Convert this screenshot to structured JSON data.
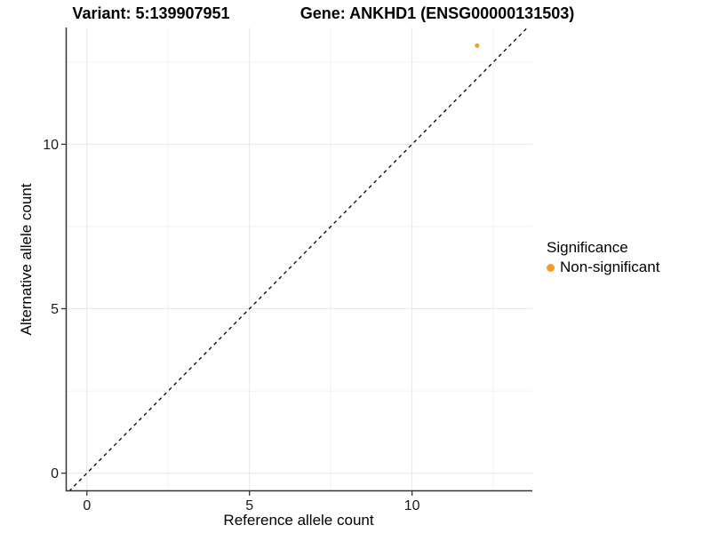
{
  "titles": {
    "variant": "Variant: 5:139907951",
    "gene": "Gene: ANKHD1 (ENSG00000131503)"
  },
  "legend": {
    "title": "Significance",
    "items": [
      {
        "label": "Non-significant",
        "color": "#F89C23"
      }
    ]
  },
  "colors": {
    "point": "#F89C23",
    "grid_major": "#E7E7E7",
    "grid_minor": "#F1F1F1",
    "axis_line": "#333333",
    "tick_label": "#1a1a1a",
    "reference_line": "#000000",
    "background": "#ffffff"
  },
  "chart_data": {
    "type": "scatter",
    "title": "",
    "xlabel": "Reference allele count",
    "ylabel": "Alternative allele count",
    "xlim": [
      -0.65,
      13.7
    ],
    "ylim": [
      -0.55,
      13.55
    ],
    "x_ticks": [
      0,
      5,
      10
    ],
    "y_ticks": [
      0,
      5,
      10
    ],
    "x_minor_ticks": [
      2.5,
      7.5,
      12.5
    ],
    "y_minor_ticks": [
      2.5,
      7.5,
      12.5
    ],
    "grid": true,
    "legend_position": "right",
    "reference_line": {
      "type": "identity",
      "equation": "y = x",
      "style": "dashed"
    },
    "series": [
      {
        "name": "Non-significant",
        "color": "#F89C23",
        "point_radius": 2.5,
        "points": [
          {
            "x": 12,
            "y": 13
          }
        ]
      }
    ]
  }
}
